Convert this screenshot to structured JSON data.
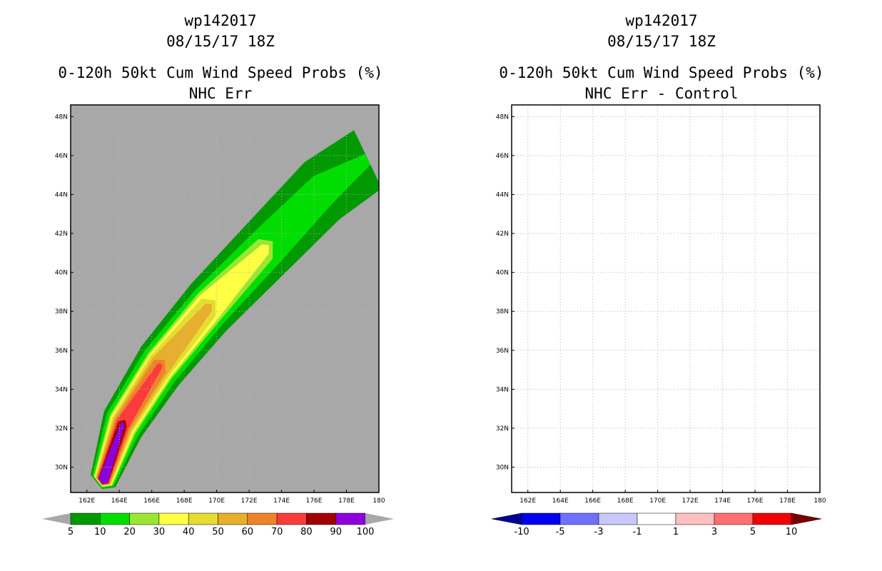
{
  "panels": [
    {
      "storm_id": "wp142017",
      "datetime": "08/15/17 18Z",
      "title": "0-120h 50kt Cum Wind Speed Probs (%)",
      "subtitle": "NHC Err",
      "background": "#a8a8a8"
    },
    {
      "storm_id": "wp142017",
      "datetime": "08/15/17 18Z",
      "title": "0-120h 50kt Cum Wind Speed Probs (%)",
      "subtitle": "NHC Err - Control",
      "background": "#ffffff"
    }
  ],
  "chart_data": [
    {
      "type": "contour_map",
      "title": "0-120h 50kt Cum Wind Speed Probs (%)",
      "subtitle": "NHC Err",
      "xlim": [
        161,
        180
      ],
      "ylim": [
        28.7,
        48.6
      ],
      "x_ticks": [
        162,
        164,
        166,
        168,
        170,
        172,
        174,
        176,
        178,
        180
      ],
      "x_tick_labels": [
        "162E",
        "164E",
        "166E",
        "168E",
        "170E",
        "172E",
        "174E",
        "176E",
        "178E",
        "180"
      ],
      "y_ticks": [
        30,
        32,
        34,
        36,
        38,
        40,
        42,
        44,
        46,
        48
      ],
      "y_tick_labels": [
        "30N",
        "32N",
        "34N",
        "36N",
        "38N",
        "40N",
        "42N",
        "44N",
        "46N",
        "48N"
      ],
      "legend": {
        "labels": [
          "5",
          "10",
          "20",
          "30",
          "40",
          "50",
          "60",
          "70",
          "80",
          "90",
          "100"
        ],
        "colors": [
          "#009900",
          "#00dd00",
          "#99e633",
          "#ffff44",
          "#e6dc32",
          "#e6af2d",
          "#f08228",
          "#fa3c3c",
          "#a00000",
          "#8c00dc"
        ],
        "under_color": "#a8a8a8",
        "over_color": "#a8a8a8"
      },
      "track_axis": [
        [
          163.0,
          29.3
        ],
        [
          164.2,
          32.2
        ],
        [
          166.5,
          35.2
        ],
        [
          169.5,
          38.2
        ],
        [
          173.0,
          41.2
        ],
        [
          176.5,
          44.2
        ],
        [
          179.3,
          45.8
        ]
      ],
      "contours": [
        {
          "level": 5,
          "color": "#009900",
          "widths_deg": [
            0.8,
            1.3,
            1.5,
            1.6,
            1.7,
            1.8,
            1.7
          ]
        },
        {
          "level": 10,
          "color": "#00dd00",
          "widths_deg": [
            0.7,
            1.1,
            1.2,
            1.2,
            1.1,
            0.9,
            0.3
          ]
        },
        {
          "level": 20,
          "color": "#99e633",
          "widths_deg": [
            0.6,
            0.9,
            0.95,
            0.95,
            0.65,
            0.0,
            0.0
          ]
        },
        {
          "level": 30,
          "color": "#ffff44",
          "widths_deg": [
            0.55,
            0.8,
            0.85,
            0.8,
            0.3,
            0.0,
            0.0
          ]
        },
        {
          "level": 40,
          "color": "#e6dc32",
          "widths_deg": [
            0.5,
            0.7,
            0.75,
            0.6,
            0.0,
            0.0,
            0.0
          ]
        },
        {
          "level": 50,
          "color": "#e6af2d",
          "widths_deg": [
            0.45,
            0.6,
            0.6,
            0.25,
            0.0,
            0.0,
            0.0
          ]
        },
        {
          "level": 60,
          "color": "#f08228",
          "widths_deg": [
            0.4,
            0.5,
            0.45,
            0.0,
            0.0,
            0.0,
            0.0
          ]
        },
        {
          "level": 70,
          "color": "#fa3c3c",
          "widths_deg": [
            0.35,
            0.4,
            0.15,
            0.0,
            0.0,
            0.0,
            0.0
          ]
        },
        {
          "level": 80,
          "color": "#a00000",
          "widths_deg": [
            0.3,
            0.28,
            0.0,
            0.0,
            0.0,
            0.0,
            0.0
          ]
        },
        {
          "level": 90,
          "color": "#8c00dc",
          "widths_deg": [
            0.28,
            0.1,
            0.0,
            0.0,
            0.0,
            0.0,
            0.0
          ]
        }
      ]
    },
    {
      "type": "contour_map",
      "title": "0-120h 50kt Cum Wind Speed Probs (%)",
      "subtitle": "NHC Err - Control",
      "xlim": [
        161,
        180
      ],
      "ylim": [
        28.7,
        48.6
      ],
      "x_ticks": [
        162,
        164,
        166,
        168,
        170,
        172,
        174,
        176,
        178,
        180
      ],
      "x_tick_labels": [
        "162E",
        "164E",
        "166E",
        "168E",
        "170E",
        "172E",
        "174E",
        "176E",
        "178E",
        "180"
      ],
      "y_ticks": [
        30,
        32,
        34,
        36,
        38,
        40,
        42,
        44,
        46,
        48
      ],
      "y_tick_labels": [
        "30N",
        "32N",
        "34N",
        "36N",
        "38N",
        "40N",
        "42N",
        "44N",
        "46N",
        "48N"
      ],
      "grid": true,
      "legend": {
        "labels": [
          "-10",
          "-5",
          "-3",
          "-1",
          "1",
          "3",
          "5",
          "10"
        ],
        "colors": [
          "#0000f0",
          "#7070ff",
          "#c8c8ff",
          "#ffffff",
          "#ffc0c0",
          "#ff7070",
          "#f00000"
        ],
        "under_color": "#000096",
        "over_color": "#780000"
      },
      "contours": []
    }
  ]
}
